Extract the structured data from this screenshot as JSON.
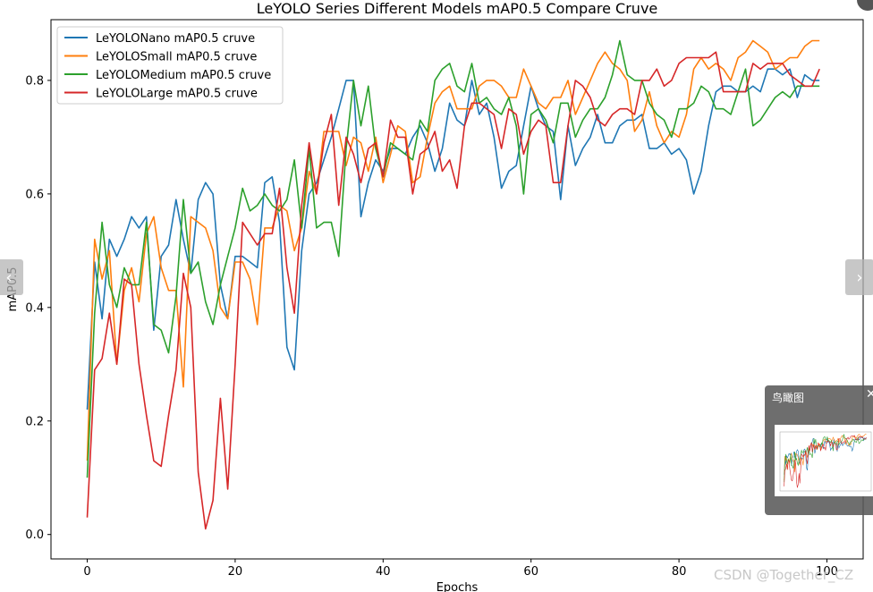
{
  "viewer": {
    "prev_icon": "chevron-left-icon",
    "prev_label": "‹",
    "next_icon": "chevron-right-icon",
    "next_label": "›",
    "overview_title": "鸟瞰图",
    "overview_close_icon": "close-icon",
    "overview_close_label": "✕",
    "watermark": "CSDN @Together_CZ"
  },
  "chart_data": {
    "type": "line",
    "title": "LeYOLO Series Different Models mAP0.5 Compare Cruve",
    "xlabel": "Epochs",
    "ylabel": "mAP0.5",
    "xlim": [
      -4.9,
      104.9
    ],
    "ylim": [
      -0.043,
      0.907
    ],
    "xticks": [
      0,
      20,
      40,
      60,
      80,
      100
    ],
    "yticks": [
      0.0,
      0.2,
      0.4,
      0.6,
      0.8
    ],
    "ytick_labels": [
      "0.0",
      "0.2",
      "0.4",
      "0.6",
      "0.8"
    ],
    "grid": false,
    "legend_position": "top-left",
    "x": [
      0,
      1,
      2,
      3,
      4,
      5,
      6,
      7,
      8,
      9,
      10,
      11,
      12,
      13,
      14,
      15,
      16,
      17,
      18,
      19,
      20,
      21,
      22,
      23,
      24,
      25,
      26,
      27,
      28,
      29,
      30,
      31,
      32,
      33,
      34,
      35,
      36,
      37,
      38,
      39,
      40,
      41,
      42,
      43,
      44,
      45,
      46,
      47,
      48,
      49,
      50,
      51,
      52,
      53,
      54,
      55,
      56,
      57,
      58,
      59,
      60,
      61,
      62,
      63,
      64,
      65,
      66,
      67,
      68,
      69,
      70,
      71,
      72,
      73,
      74,
      75,
      76,
      77,
      78,
      79,
      80,
      81,
      82,
      83,
      84,
      85,
      86,
      87,
      88,
      89,
      90,
      91,
      92,
      93,
      94,
      95,
      96,
      97,
      98,
      99
    ],
    "series": [
      {
        "name": "LeYOLONano mAP0.5 cruve",
        "color": "#1f77b4",
        "values": [
          0.22,
          0.48,
          0.38,
          0.52,
          0.49,
          0.52,
          0.56,
          0.54,
          0.56,
          0.36,
          0.49,
          0.51,
          0.59,
          0.52,
          0.46,
          0.59,
          0.62,
          0.6,
          0.44,
          0.38,
          0.49,
          0.49,
          0.48,
          0.47,
          0.62,
          0.63,
          0.55,
          0.33,
          0.29,
          0.5,
          0.6,
          0.62,
          0.66,
          0.7,
          0.75,
          0.8,
          0.8,
          0.56,
          0.62,
          0.66,
          0.64,
          0.68,
          0.68,
          0.67,
          0.7,
          0.72,
          0.69,
          0.64,
          0.68,
          0.76,
          0.73,
          0.72,
          0.8,
          0.74,
          0.76,
          0.7,
          0.61,
          0.64,
          0.65,
          0.72,
          0.79,
          0.75,
          0.72,
          0.71,
          0.59,
          0.72,
          0.65,
          0.68,
          0.7,
          0.74,
          0.69,
          0.69,
          0.72,
          0.73,
          0.73,
          0.74,
          0.68,
          0.68,
          0.69,
          0.67,
          0.68,
          0.66,
          0.6,
          0.64,
          0.72,
          0.78,
          0.79,
          0.79,
          0.78,
          0.78,
          0.79,
          0.78,
          0.82,
          0.82,
          0.81,
          0.82,
          0.77,
          0.81,
          0.8,
          0.8
        ]
      },
      {
        "name": "LeYOLOSmall mAP0.5 cruve",
        "color": "#ff7f0e",
        "values": [
          0.13,
          0.52,
          0.45,
          0.5,
          0.3,
          0.43,
          0.47,
          0.41,
          0.53,
          0.56,
          0.47,
          0.43,
          0.43,
          0.26,
          0.56,
          0.55,
          0.54,
          0.5,
          0.4,
          0.38,
          0.48,
          0.48,
          0.45,
          0.37,
          0.54,
          0.54,
          0.58,
          0.57,
          0.5,
          0.54,
          0.64,
          0.6,
          0.71,
          0.71,
          0.71,
          0.65,
          0.7,
          0.69,
          0.64,
          0.7,
          0.62,
          0.67,
          0.72,
          0.71,
          0.62,
          0.63,
          0.7,
          0.76,
          0.78,
          0.79,
          0.75,
          0.75,
          0.75,
          0.79,
          0.8,
          0.8,
          0.79,
          0.77,
          0.77,
          0.82,
          0.79,
          0.76,
          0.75,
          0.77,
          0.77,
          0.8,
          0.74,
          0.77,
          0.8,
          0.83,
          0.85,
          0.83,
          0.82,
          0.8,
          0.71,
          0.73,
          0.78,
          0.72,
          0.69,
          0.71,
          0.7,
          0.74,
          0.82,
          0.84,
          0.82,
          0.83,
          0.82,
          0.8,
          0.84,
          0.85,
          0.87,
          0.86,
          0.85,
          0.82,
          0.83,
          0.84,
          0.84,
          0.86,
          0.87,
          0.87
        ]
      },
      {
        "name": "LeYOLOMedium mAP0.5 cruve",
        "color": "#2ca02c",
        "values": [
          0.1,
          0.39,
          0.55,
          0.44,
          0.4,
          0.47,
          0.44,
          0.44,
          0.55,
          0.37,
          0.36,
          0.32,
          0.42,
          0.59,
          0.46,
          0.48,
          0.41,
          0.37,
          0.44,
          0.49,
          0.54,
          0.61,
          0.57,
          0.58,
          0.6,
          0.58,
          0.57,
          0.59,
          0.66,
          0.54,
          0.68,
          0.54,
          0.55,
          0.55,
          0.49,
          0.68,
          0.8,
          0.72,
          0.79,
          0.68,
          0.63,
          0.69,
          0.68,
          0.67,
          0.66,
          0.73,
          0.71,
          0.8,
          0.82,
          0.83,
          0.79,
          0.78,
          0.83,
          0.76,
          0.77,
          0.75,
          0.74,
          0.77,
          0.72,
          0.6,
          0.74,
          0.75,
          0.73,
          0.69,
          0.76,
          0.76,
          0.7,
          0.73,
          0.75,
          0.75,
          0.77,
          0.81,
          0.87,
          0.81,
          0.8,
          0.8,
          0.76,
          0.74,
          0.73,
          0.7,
          0.75,
          0.75,
          0.76,
          0.79,
          0.78,
          0.75,
          0.75,
          0.74,
          0.78,
          0.82,
          0.72,
          0.73,
          0.75,
          0.77,
          0.78,
          0.77,
          0.79,
          0.79,
          0.79,
          0.79
        ]
      },
      {
        "name": "LeYOLOLarge mAP0.5 cruve",
        "color": "#d62728",
        "values": [
          0.03,
          0.29,
          0.31,
          0.39,
          0.3,
          0.45,
          0.44,
          0.3,
          0.21,
          0.13,
          0.12,
          0.21,
          0.29,
          0.46,
          0.4,
          0.11,
          0.01,
          0.06,
          0.24,
          0.08,
          0.3,
          0.55,
          0.53,
          0.51,
          0.53,
          0.53,
          0.61,
          0.47,
          0.39,
          0.58,
          0.69,
          0.6,
          0.69,
          0.74,
          0.58,
          0.7,
          0.67,
          0.62,
          0.68,
          0.69,
          0.63,
          0.73,
          0.7,
          0.7,
          0.6,
          0.67,
          0.68,
          0.71,
          0.64,
          0.66,
          0.61,
          0.72,
          0.76,
          0.76,
          0.75,
          0.74,
          0.68,
          0.75,
          0.74,
          0.67,
          0.71,
          0.73,
          0.72,
          0.62,
          0.62,
          0.72,
          0.8,
          0.79,
          0.77,
          0.73,
          0.72,
          0.74,
          0.75,
          0.75,
          0.74,
          0.8,
          0.8,
          0.82,
          0.79,
          0.8,
          0.83,
          0.84,
          0.84,
          0.84,
          0.84,
          0.85,
          0.78,
          0.78,
          0.78,
          0.78,
          0.83,
          0.82,
          0.83,
          0.83,
          0.83,
          0.81,
          0.8,
          0.79,
          0.79,
          0.82
        ]
      }
    ]
  }
}
